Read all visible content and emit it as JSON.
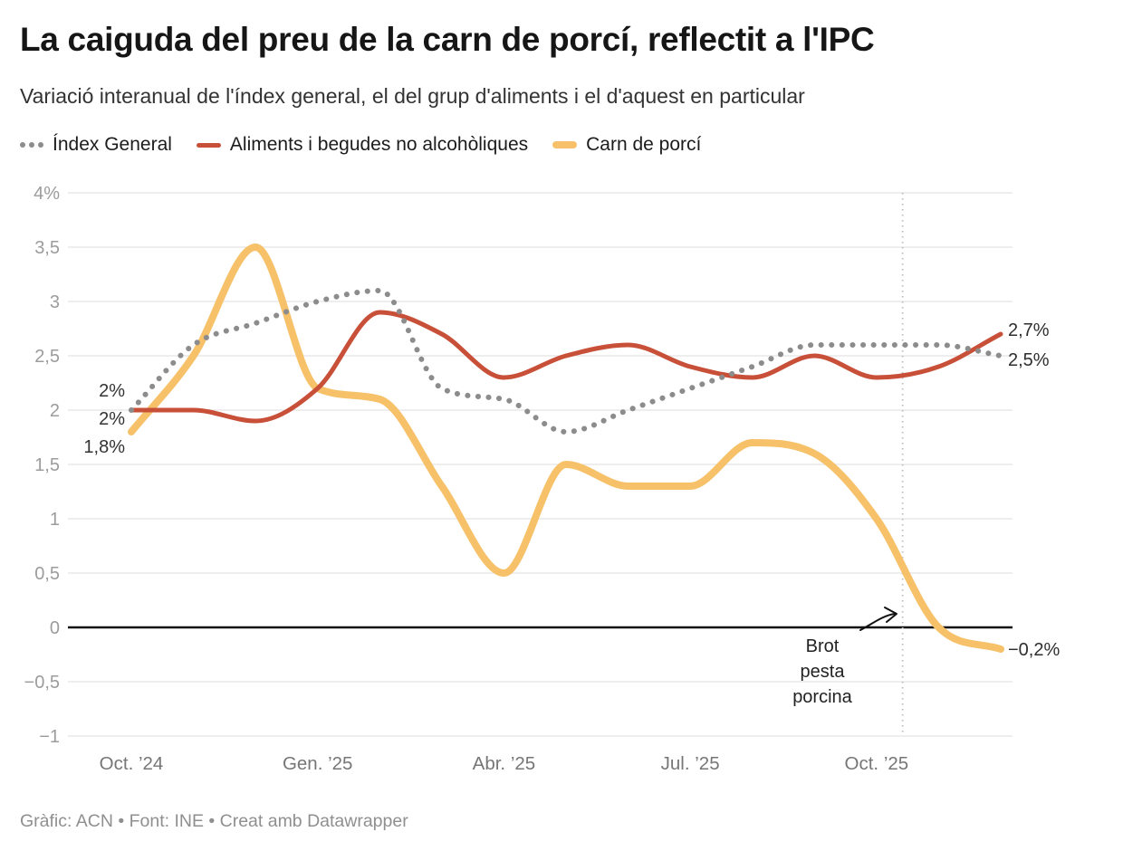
{
  "header": {
    "title": "La caiguda del preu de la carn de porcí, reflectit a l'IPC",
    "subtitle": "Variació interanual de l'índex general, el del grup d'aliments i el d'aquest en particular"
  },
  "legend": [
    {
      "label": "Índex General",
      "marker": "dots",
      "color": "#8c8c8c"
    },
    {
      "label": "Aliments i begudes no alcohòliques",
      "marker": "dash",
      "color": "#c84f38"
    },
    {
      "label": "Carn de porcí",
      "marker": "dash-thick",
      "color": "#f6c169"
    }
  ],
  "chart_data": {
    "type": "line",
    "x": [
      "oct. ’24",
      "nov. ’24",
      "des. ’24",
      "gen. ’25",
      "feb. ’25",
      "mar. ’25",
      "abr. ’25",
      "mai. ’25",
      "jun. ’25",
      "jul. ’25",
      "ag. ’25",
      "set. ’25",
      "oct. ’25",
      "nov. ’25",
      "des. ’25"
    ],
    "x_tick_labels": [
      {
        "index": 0,
        "label": "Oct. ’24"
      },
      {
        "index": 3,
        "label": "Gen. ’25"
      },
      {
        "index": 6,
        "label": "Abr. ’25"
      },
      {
        "index": 9,
        "label": "Jul. ’25"
      },
      {
        "index": 12,
        "label": "Oct. ’25"
      }
    ],
    "y_ticks": [
      {
        "v": 4,
        "label": "4%"
      },
      {
        "v": 3.5,
        "label": "3,5"
      },
      {
        "v": 3,
        "label": "3"
      },
      {
        "v": 2.5,
        "label": "2,5"
      },
      {
        "v": 2,
        "label": "2"
      },
      {
        "v": 1.5,
        "label": "1,5"
      },
      {
        "v": 1,
        "label": "1"
      },
      {
        "v": 0.5,
        "label": "0,5"
      },
      {
        "v": 0,
        "label": "0"
      },
      {
        "v": -0.5,
        "label": "−0,5"
      },
      {
        "v": -1,
        "label": "−1"
      }
    ],
    "ylim": [
      -1,
      4
    ],
    "grid": true,
    "zero_line": true,
    "legend_position": "top",
    "series": [
      {
        "name": "Índex General",
        "style": "dotted",
        "color": "#8c8c8c",
        "start_label": "2%",
        "end_label": "2,5%",
        "values": [
          2.0,
          2.6,
          2.8,
          3.0,
          3.1,
          2.2,
          2.1,
          1.8,
          2.0,
          2.2,
          2.4,
          2.6,
          2.6,
          2.6,
          2.5
        ]
      },
      {
        "name": "Aliments i begudes no alcohòliques",
        "style": "solid",
        "color": "#c84f38",
        "start_label": "2%",
        "end_label": "2,7%",
        "values": [
          2.0,
          2.0,
          1.9,
          2.2,
          2.9,
          2.7,
          2.3,
          2.5,
          2.6,
          2.4,
          2.3,
          2.5,
          2.3,
          2.4,
          2.7
        ]
      },
      {
        "name": "Carn de porcí",
        "style": "solid-thick",
        "color": "#f6c169",
        "start_label": "1,8%",
        "end_label": "−0,2%",
        "values": [
          1.8,
          2.5,
          3.5,
          2.2,
          2.1,
          1.3,
          0.5,
          1.5,
          1.3,
          1.3,
          1.7,
          1.6,
          1.0,
          0.0,
          -0.2
        ]
      }
    ],
    "annotation": {
      "label_lines": [
        "Brot",
        "pesta",
        "porcina"
      ],
      "event_line_month_index": 12.42
    }
  },
  "footer": {
    "credit": "Gràfic: ACN • Font: INE • Creat amb Datawrapper"
  }
}
